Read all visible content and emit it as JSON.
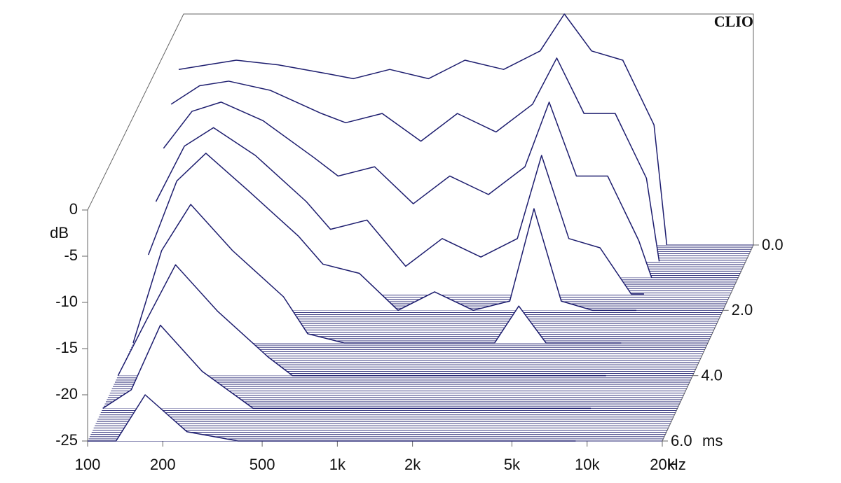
{
  "chart_data": {
    "type": "waterfall",
    "brand": "CLIO",
    "x_label": "Hz",
    "y_label": "dB",
    "z_label": "ms",
    "x_log": true,
    "color": "#1c1c6e",
    "x": [
      100,
      130,
      170,
      250,
      400,
      500,
      700,
      1000,
      1400,
      2000,
      2800,
      3500,
      4500,
      6000,
      8000,
      9000
    ],
    "series": [
      {
        "t": 0,
        "values": [
          -6,
          -5.5,
          -5,
          -5.5,
          -6.5,
          -7,
          -6,
          -7,
          -5,
          -6,
          -4,
          0,
          -4,
          -5,
          -12,
          -25
        ]
      },
      {
        "t": 0.5,
        "values": [
          -8,
          -6,
          -5.5,
          -6.5,
          -9,
          -10,
          -9,
          -12,
          -9,
          -11,
          -8,
          -3,
          -9,
          -9,
          -16,
          -25
        ]
      },
      {
        "t": 1,
        "values": [
          -11,
          -7,
          -6,
          -8,
          -12,
          -14,
          -13,
          -17,
          -14,
          -16,
          -13,
          -6,
          -14,
          -14,
          -21,
          -25
        ]
      },
      {
        "t": 1.5,
        "values": [
          -15,
          -9,
          -7,
          -10,
          -15,
          -18,
          -17,
          -22,
          -19,
          -21,
          -19,
          -10,
          -19,
          -20,
          -25,
          -25
        ]
      },
      {
        "t": 2,
        "values": [
          -19,
          -11,
          -8,
          -12,
          -17,
          -20,
          -21,
          -25,
          -23,
          -25,
          -24,
          -14,
          -24,
          -25,
          -25,
          -25
        ]
      },
      {
        "t": 3,
        "values": [
          -25,
          -15,
          -10,
          -15,
          -20,
          -24,
          -25,
          -25,
          -25,
          -25,
          -25,
          -21,
          -25,
          -25,
          -25,
          -25
        ]
      },
      {
        "t": 4,
        "values": [
          -25,
          -19,
          -13,
          -18,
          -23,
          -25,
          -25,
          -25,
          -25,
          -25,
          -25,
          -25,
          -25,
          -25,
          -25,
          -25
        ]
      },
      {
        "t": 5,
        "values": [
          -25,
          -23,
          -16,
          -21,
          -25,
          -25,
          -25,
          -25,
          -25,
          -25,
          -25,
          -25,
          -25,
          -25,
          -25,
          -25
        ]
      },
      {
        "t": 6,
        "values": [
          -25,
          -25,
          -20,
          -24,
          -25,
          -25,
          -25,
          -25,
          -25,
          -25,
          -25,
          -25,
          -25,
          -25,
          -25,
          -25
        ]
      }
    ],
    "xlim": [
      100,
      20000
    ],
    "xticks": [
      100,
      200,
      500,
      {
        "value": 1000,
        "label": "1k"
      },
      {
        "value": 2000,
        "label": "2k"
      },
      {
        "value": 5000,
        "label": "5k"
      },
      {
        "value": 10000,
        "label": "10k"
      },
      {
        "value": 20000,
        "label": "20k"
      }
    ],
    "ylim": [
      -25,
      0
    ],
    "yticks": [
      0,
      -5,
      -10,
      -15,
      -20,
      -25
    ],
    "zlim": [
      0,
      6
    ],
    "zticks": [
      {
        "value": 0,
        "label": "0.0"
      },
      {
        "value": 2,
        "label": "2.0"
      },
      {
        "value": 4,
        "label": "4.0"
      },
      {
        "value": 6,
        "label": "6.0"
      }
    ]
  }
}
